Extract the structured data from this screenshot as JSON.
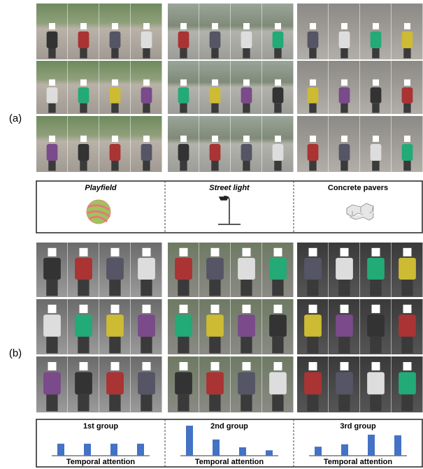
{
  "panel_labels": [
    "(a)",
    "(b)"
  ],
  "scenes": [
    {
      "name": "Playfield"
    },
    {
      "name": "Street light"
    },
    {
      "name": "Concrete pavers"
    }
  ],
  "groups": [
    {
      "title": "1st group",
      "xlabel": "Temporal attention",
      "values": [
        0.2,
        0.2,
        0.2,
        0.2
      ],
      "color": "#4472c4"
    },
    {
      "title": "2nd group",
      "xlabel": "Temporal attention",
      "values": [
        0.5,
        0.27,
        0.14,
        0.09
      ],
      "color": "#4472c4"
    },
    {
      "title": "3rd group",
      "xlabel": "Temporal attention",
      "values": [
        0.15,
        0.19,
        0.35,
        0.34
      ],
      "color": "#4472c4"
    }
  ]
}
